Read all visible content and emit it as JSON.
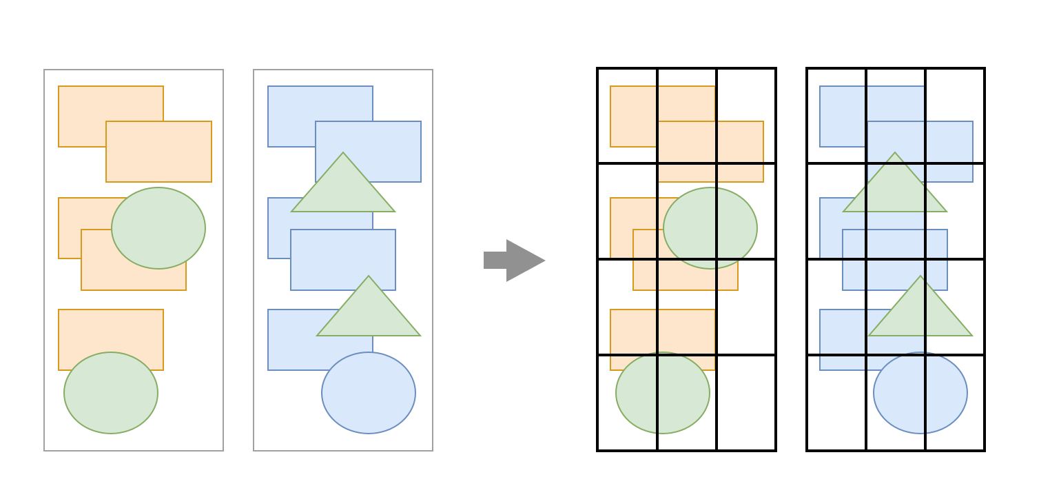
{
  "diagram": {
    "description_free": true,
    "colors": {
      "orange_fill": "#fde6cc",
      "orange_stroke": "#d89a1c",
      "blue_fill": "#d9e8fb",
      "blue_stroke": "#6c8ebf",
      "green_fill": "#d7e8d4",
      "green_stroke": "#85ad64",
      "panel_stroke": "#a0a0a0",
      "grid_stroke": "#000000",
      "arrow_fill": "#919191"
    },
    "panels": [
      {
        "name": "orange-panel",
        "shape_color": "orange"
      },
      {
        "name": "blue-panel",
        "shape_color": "blue"
      }
    ],
    "grid": {
      "rows": 4,
      "cols": 3
    }
  }
}
